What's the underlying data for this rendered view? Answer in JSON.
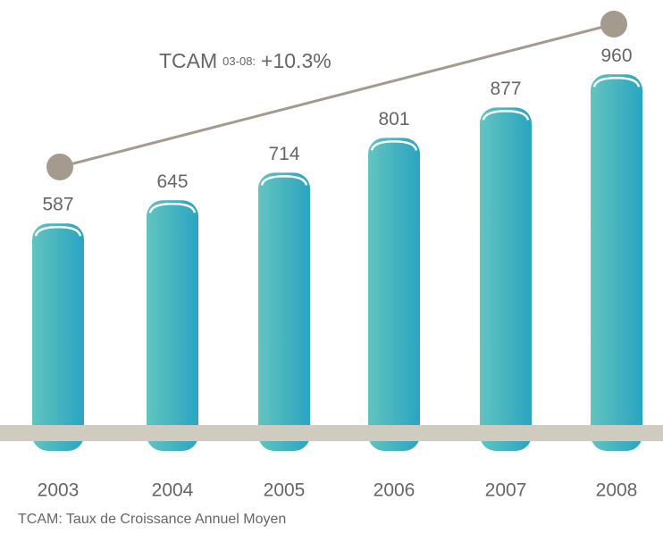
{
  "chart_data": {
    "type": "bar",
    "categories": [
      "2003",
      "2004",
      "2005",
      "2006",
      "2007",
      "2008"
    ],
    "values": [
      587,
      645,
      714,
      801,
      877,
      960
    ],
    "color": "#3cb3c0",
    "annotation": {
      "prefix": "TCAM",
      "period": "03-08:",
      "value": "+10.3%"
    },
    "footnote": "TCAM: Taux de Croissance Annuel Moyen"
  }
}
